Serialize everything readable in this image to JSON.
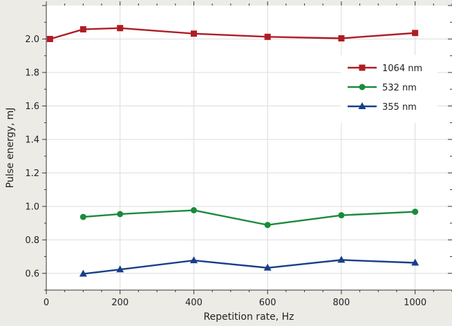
{
  "chart_data": {
    "type": "line",
    "xlabel": "Repetition rate, Hz",
    "ylabel": "Pulse energy, mJ",
    "xlim": [
      0,
      1100
    ],
    "ylim": [
      0.5,
      2.2
    ],
    "x_ticks": [
      0,
      200,
      400,
      600,
      800,
      1000
    ],
    "y_ticks": [
      0.6,
      0.8,
      1.0,
      1.2,
      1.4,
      1.6,
      1.8,
      2.0
    ],
    "x_tick_labels": [
      "0",
      "200",
      "400",
      "600",
      "800",
      "1000"
    ],
    "y_tick_labels": [
      "0.6",
      "0.8",
      "1.0",
      "1.2",
      "1.4",
      "1.6",
      "1.8",
      "2.0"
    ],
    "grid": true,
    "legend_position": "top-right",
    "series": [
      {
        "name": "1064 nm",
        "color": "#b01c24",
        "marker": "square",
        "x": [
          10,
          100,
          200,
          400,
          600,
          800,
          1000
        ],
        "y": [
          2.0,
          2.058,
          2.065,
          2.032,
          2.013,
          2.004,
          2.036
        ]
      },
      {
        "name": "532 nm",
        "color": "#1a8a3c",
        "marker": "circle",
        "x": [
          100,
          200,
          400,
          600,
          800,
          1000
        ],
        "y": [
          0.937,
          0.954,
          0.977,
          0.889,
          0.947,
          0.968
        ]
      },
      {
        "name": "355 nm",
        "color": "#173f8a",
        "marker": "triangle",
        "x": [
          100,
          200,
          400,
          600,
          800,
          1000
        ],
        "y": [
          0.597,
          0.623,
          0.677,
          0.633,
          0.68,
          0.663
        ]
      }
    ]
  }
}
